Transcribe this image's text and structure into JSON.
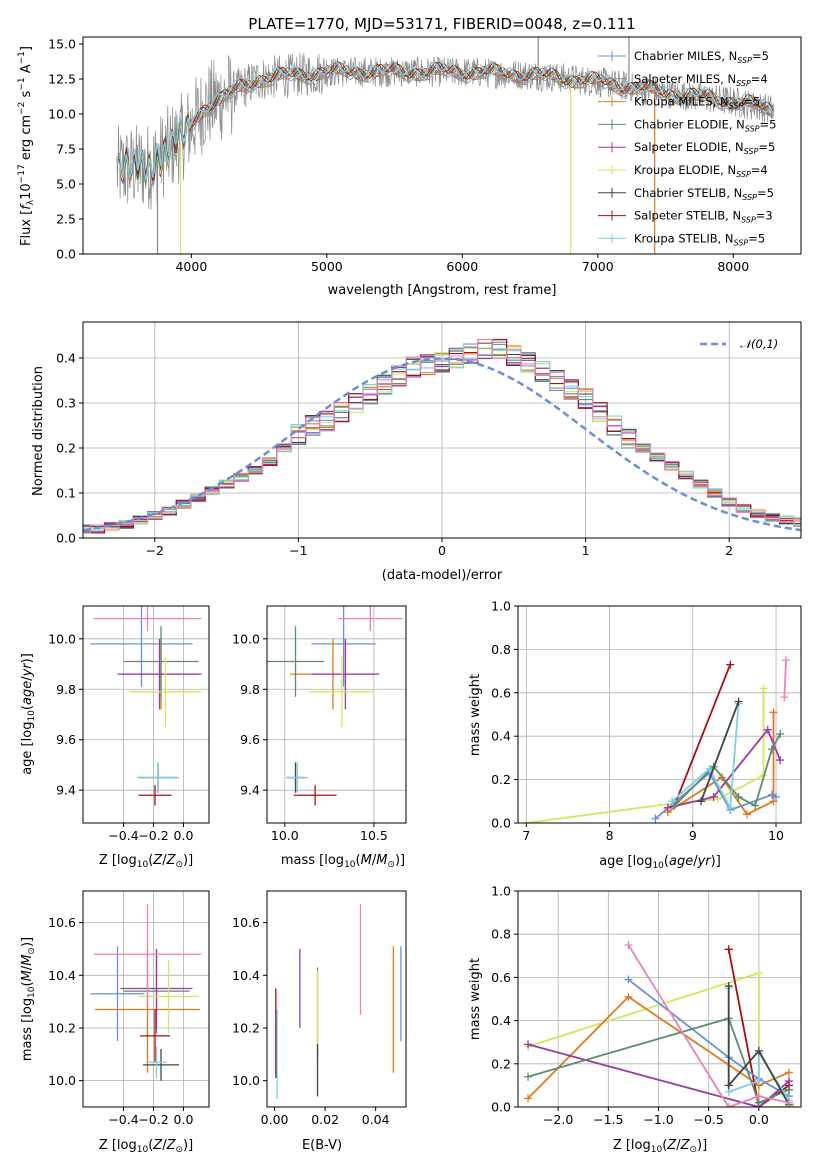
{
  "figure": {
    "title": "PLATE=1770, MJD=53171, FIBERID=0048, z=0.111",
    "colors": {
      "Chabrier MILES": "#6b8fd6",
      "Salpeter MILES": "#8a8a8a",
      "Kroupa MILES": "#e07a20",
      "Chabrier ELODIE": "#5f8b6e",
      "Salpeter ELODIE": "#9a3aa8",
      "Kroupa ELODIE": "#d2e85a",
      "Chabrier STELIB": "#444444",
      "Salpeter STELIB": "#a81010",
      "Kroupa STELIB": "#7fd0dc",
      "Pink": "#e884b8",
      "Gaussian": "#6b8fd6",
      "Grid": "#b0b0b0"
    }
  },
  "chart_data": [
    {
      "id": "spectrum",
      "type": "line",
      "xlabel": "wavelength [Angstrom, rest frame]",
      "ylabel": "Flux [f_λ 10^-17 erg cm^-2 s^-1 A^-1]",
      "xlim": [
        3200,
        8500
      ],
      "ylim": [
        0,
        15.5
      ],
      "xticks": [
        4000,
        5000,
        6000,
        7000,
        8000
      ],
      "yticks": [
        0.0,
        2.5,
        5.0,
        7.5,
        10.0,
        12.5,
        15.0
      ],
      "data_range": [
        3450,
        8300
      ],
      "continuum_anchors": [
        {
          "x": 3450,
          "y": 6.0
        },
        {
          "x": 3700,
          "y": 6.3
        },
        {
          "x": 3950,
          "y": 8.5
        },
        {
          "x": 4100,
          "y": 10.5
        },
        {
          "x": 4300,
          "y": 11.5
        },
        {
          "x": 4500,
          "y": 12.5
        },
        {
          "x": 5000,
          "y": 13.0
        },
        {
          "x": 5500,
          "y": 13.0
        },
        {
          "x": 6000,
          "y": 13.0
        },
        {
          "x": 6500,
          "y": 12.8
        },
        {
          "x": 7000,
          "y": 12.3
        },
        {
          "x": 7500,
          "y": 11.5
        },
        {
          "x": 8000,
          "y": 10.9
        },
        {
          "x": 8300,
          "y": 10.3
        }
      ],
      "legend": [
        {
          "model": "Chabrier MILES",
          "n": "5"
        },
        {
          "model": "Salpeter MILES",
          "n": "4"
        },
        {
          "model": "Kroupa MILES",
          "n": "5"
        },
        {
          "model": "Chabrier ELODIE",
          "n": "5"
        },
        {
          "model": "Salpeter ELODIE",
          "n": "5"
        },
        {
          "model": "Kroupa ELODIE",
          "n": "4"
        },
        {
          "model": "Chabrier STELIB",
          "n": "5"
        },
        {
          "model": "Salpeter STELIB",
          "n": "3"
        },
        {
          "model": "Kroupa STELIB",
          "n": "5"
        }
      ],
      "legend_position": "top-right",
      "grid": false
    },
    {
      "id": "residuals",
      "type": "line",
      "xlabel": "(data-model)/error",
      "ylabel": "Normed distribution",
      "xlim": [
        -2.5,
        2.5
      ],
      "ylim": [
        0,
        0.48
      ],
      "xticks": [
        -2,
        -1,
        0,
        1,
        2
      ],
      "yticks": [
        0.0,
        0.1,
        0.2,
        0.3,
        0.4
      ],
      "bin_width": 0.1,
      "bins_start": -2.55,
      "density": [
        0.02,
        0.02,
        0.025,
        0.03,
        0.04,
        0.05,
        0.06,
        0.075,
        0.09,
        0.105,
        0.12,
        0.135,
        0.15,
        0.17,
        0.2,
        0.23,
        0.25,
        0.26,
        0.28,
        0.3,
        0.32,
        0.34,
        0.36,
        0.38,
        0.385,
        0.39,
        0.4,
        0.41,
        0.42,
        0.42,
        0.405,
        0.39,
        0.37,
        0.35,
        0.33,
        0.31,
        0.28,
        0.25,
        0.22,
        0.2,
        0.18,
        0.16,
        0.14,
        0.12,
        0.1,
        0.08,
        0.065,
        0.055,
        0.045,
        0.04,
        0.035
      ],
      "legend": "𝒩(0,1)",
      "legend_position": "top-right",
      "grid": true
    },
    {
      "id": "z_age",
      "type": "scatter",
      "xlabel": "Z [log10(Z/Z⊙)]",
      "ylabel": "age [log10(age/yr)]",
      "xlim": [
        -0.67,
        0.17
      ],
      "ylim": [
        9.27,
        10.13
      ],
      "xticks": [
        -0.4,
        -0.2,
        0.0
      ],
      "yticks": [
        9.4,
        9.6,
        9.8,
        10.0
      ],
      "grid": true,
      "points": [
        {
          "c": "Chabrier MILES",
          "x": -0.28,
          "xe": 0.34,
          "y": 9.98,
          "ye": 0.17
        },
        {
          "c": "Kroupa MILES",
          "x": -0.15,
          "xe": 0.26,
          "y": 9.86,
          "ye": 0.14
        },
        {
          "c": "Chabrier ELODIE",
          "x": -0.15,
          "xe": 0.25,
          "y": 9.91,
          "ye": 0.14
        },
        {
          "c": "Salpeter ELODIE",
          "x": -0.16,
          "xe": 0.28,
          "y": 9.86,
          "ye": 0.14
        },
        {
          "c": "Kroupa ELODIE",
          "x": -0.12,
          "xe": 0.24,
          "y": 9.79,
          "ye": 0.14
        },
        {
          "c": "Chabrier STELIB",
          "x": -0.17,
          "xe": 0.13,
          "y": 9.45,
          "ye": 0.06
        },
        {
          "c": "Salpeter STELIB",
          "x": -0.19,
          "xe": 0.11,
          "y": 9.38,
          "ye": 0.04
        },
        {
          "c": "Kroupa STELIB",
          "x": -0.17,
          "xe": 0.14,
          "y": 9.45,
          "ye": 0.06
        },
        {
          "c": "Pink",
          "x": -0.24,
          "xe": 0.36,
          "y": 10.08,
          "ye": 0.05
        }
      ]
    },
    {
      "id": "mass_age",
      "type": "scatter",
      "xlabel": "mass [log10(M/M⊙)]",
      "ylabel": "",
      "xlim": [
        9.9,
        10.68
      ],
      "ylim": [
        9.27,
        10.13
      ],
      "xticks": [
        10.0,
        10.5
      ],
      "yticks": [
        9.4,
        9.6,
        9.8,
        10.0
      ],
      "grid": true,
      "points": [
        {
          "c": "Chabrier MILES",
          "x": 10.33,
          "xe": 0.18,
          "y": 9.98,
          "ye": 0.17
        },
        {
          "c": "Kroupa MILES",
          "x": 10.27,
          "xe": 0.24,
          "y": 9.86,
          "ye": 0.14
        },
        {
          "c": "Chabrier ELODIE",
          "x": 10.06,
          "xe": 0.16,
          "y": 9.91,
          "ye": 0.14
        },
        {
          "c": "Salpeter ELODIE",
          "x": 10.34,
          "xe": 0.19,
          "y": 9.86,
          "ye": 0.14
        },
        {
          "c": "Kroupa ELODIE",
          "x": 10.32,
          "xe": 0.18,
          "y": 9.79,
          "ye": 0.14
        },
        {
          "c": "Chabrier STELIB",
          "x": 10.06,
          "xe": 0.05,
          "y": 9.45,
          "ye": 0.06
        },
        {
          "c": "Salpeter STELIB",
          "x": 10.17,
          "xe": 0.12,
          "y": 9.38,
          "ye": 0.04
        },
        {
          "c": "Kroupa STELIB",
          "x": 10.07,
          "xe": 0.06,
          "y": 9.45,
          "ye": 0.06
        },
        {
          "c": "Pink",
          "x": 10.48,
          "xe": 0.18,
          "y": 10.08,
          "ye": 0.05
        }
      ]
    },
    {
      "id": "age_weight",
      "type": "line",
      "xlabel": "age [log10(age/yr)]",
      "ylabel": "mass weight",
      "xlim": [
        6.9,
        10.3
      ],
      "ylim": [
        0.0,
        1.0
      ],
      "xticks": [
        7,
        8,
        9,
        10
      ],
      "yticks": [
        0.0,
        0.2,
        0.4,
        0.6,
        0.8,
        1.0
      ],
      "grid": true,
      "series": [
        {
          "c": "Kroupa ELODIE",
          "x": [
            7.0,
            8.75,
            9.3,
            9.85,
            9.85
          ],
          "y": [
            0.0,
            0.09,
            0.11,
            0.22,
            0.62
          ]
        },
        {
          "c": "Kroupa MILES",
          "x": [
            8.7,
            9.35,
            9.65,
            9.97,
            9.97
          ],
          "y": [
            0.05,
            0.21,
            0.04,
            0.1,
            0.51
          ]
        },
        {
          "c": "Salpeter STELIB",
          "x": [
            8.8,
            9.45
          ],
          "y": [
            0.1,
            0.73
          ]
        },
        {
          "c": "Chabrier MILES",
          "x": [
            8.55,
            9.2,
            9.45,
            9.95,
            10.0
          ],
          "y": [
            0.02,
            0.23,
            0.06,
            0.13,
            0.12
          ]
        },
        {
          "c": "Salpeter ELODIE",
          "x": [
            8.7,
            9.25,
            9.9,
            10.05
          ],
          "y": [
            0.07,
            0.12,
            0.43,
            0.29
          ]
        },
        {
          "c": "Chabrier ELODIE",
          "x": [
            8.78,
            9.25,
            9.55,
            9.75,
            9.95,
            10.05
          ],
          "y": [
            0.08,
            0.26,
            0.12,
            0.08,
            0.34,
            0.41
          ]
        },
        {
          "c": "Kroupa STELIB",
          "x": [
            8.75,
            9.2,
            9.45,
            9.55
          ],
          "y": [
            0.1,
            0.25,
            0.07,
            0.55
          ]
        },
        {
          "c": "Chabrier STELIB",
          "x": [
            9.1,
            9.55
          ],
          "y": [
            0.1,
            0.56
          ]
        },
        {
          "c": "Pink",
          "x": [
            10.1,
            10.12
          ],
          "y": [
            0.58,
            0.75
          ]
        }
      ]
    },
    {
      "id": "z_mass",
      "type": "scatter",
      "xlabel": "Z [log10(Z/Z⊙)]",
      "ylabel": "mass [log10(M/M⊙)]",
      "xlim": [
        -0.67,
        0.17
      ],
      "ylim": [
        9.9,
        10.72
      ],
      "xticks": [
        -0.4,
        -0.2,
        0.0
      ],
      "yticks": [
        10.0,
        10.2,
        10.4,
        10.6
      ],
      "grid": true,
      "points": [
        {
          "c": "Chabrier MILES",
          "x": -0.44,
          "xe": 0.18,
          "y": 10.33,
          "ye": 0.18
        },
        {
          "c": "Kroupa MILES",
          "x": -0.24,
          "xe": 0.35,
          "y": 10.27,
          "ye": 0.24
        },
        {
          "c": "Chabrier ELODIE",
          "x": -0.18,
          "xe": 0.22,
          "y": 10.34,
          "ye": 0.16
        },
        {
          "c": "Salpeter ELODIE",
          "x": -0.18,
          "xe": 0.24,
          "y": 10.35,
          "ye": 0.15
        },
        {
          "c": "Kroupa ELODIE",
          "x": -0.1,
          "xe": 0.2,
          "y": 10.32,
          "ye": 0.14
        },
        {
          "c": "Chabrier STELIB",
          "x": -0.15,
          "xe": 0.12,
          "y": 10.06,
          "ye": 0.06
        },
        {
          "c": "Salpeter STELIB",
          "x": -0.19,
          "xe": 0.1,
          "y": 10.17,
          "ye": 0.1
        },
        {
          "c": "Kroupa STELIB",
          "x": -0.18,
          "xe": 0.07,
          "y": 10.07,
          "ye": 0.06
        },
        {
          "c": "Pink",
          "x": -0.24,
          "xe": 0.36,
          "y": 10.48,
          "ye": 0.19
        }
      ]
    },
    {
      "id": "ebv_mass",
      "type": "scatter",
      "xlabel": "E(B-V)",
      "ylabel": "",
      "xlim": [
        -0.003,
        0.052
      ],
      "ylim": [
        9.9,
        10.72
      ],
      "xticks": [
        0.0,
        0.02,
        0.04
      ],
      "yticks": [
        10.0,
        10.2,
        10.4,
        10.6
      ],
      "grid": false,
      "points": [
        {
          "c": "Chabrier MILES",
          "x": 0.05,
          "y": 10.33,
          "ye": 0.18
        },
        {
          "c": "Kroupa MILES",
          "x": 0.047,
          "y": 10.27,
          "ye": 0.24
        },
        {
          "c": "Chabrier ELODIE",
          "x": 0.017,
          "y": 10.26,
          "ye": 0.17
        },
        {
          "c": "Salpeter ELODIE",
          "x": 0.01,
          "y": 10.35,
          "ye": 0.15
        },
        {
          "c": "Kroupa ELODIE",
          "x": 0.017,
          "y": 10.25,
          "ye": 0.17
        },
        {
          "c": "Chabrier STELIB",
          "x": 0.017,
          "y": 10.04,
          "ye": 0.1
        },
        {
          "c": "Salpeter STELIB",
          "x": 0.0005,
          "y": 10.18,
          "ye": 0.17
        },
        {
          "c": "Kroupa STELIB",
          "x": 0.001,
          "y": 10.1,
          "ye": 0.17
        },
        {
          "c": "Pink",
          "x": 0.034,
          "y": 10.46,
          "ye": 0.21
        }
      ]
    },
    {
      "id": "z_weight",
      "type": "line",
      "xlabel": "Z [log10(Z/Z⊙)]",
      "ylabel": "mass weight",
      "xlim": [
        -2.4,
        0.42
      ],
      "ylim": [
        0.0,
        1.0
      ],
      "xticks": [
        -2.0,
        -1.5,
        -1.0,
        -0.5,
        0.0
      ],
      "yticks": [
        0.0,
        0.2,
        0.4,
        0.6,
        0.8,
        1.0
      ],
      "grid": true,
      "series": [
        {
          "c": "Kroupa ELODIE",
          "x": [
            -2.3,
            0.0,
            0.0,
            0.35
          ],
          "y": [
            0.28,
            0.62,
            0.0,
            0.0
          ]
        },
        {
          "c": "Kroupa MILES",
          "x": [
            -2.3,
            -1.3,
            0.0,
            0.3
          ],
          "y": [
            0.04,
            0.51,
            0.1,
            0.16
          ]
        },
        {
          "c": "Salpeter STELIB",
          "x": [
            -0.3,
            0.0,
            0.3
          ],
          "y": [
            0.73,
            0.0,
            0.1
          ]
        },
        {
          "c": "Chabrier MILES",
          "x": [
            -1.3,
            -0.3,
            0.0,
            0.3
          ],
          "y": [
            0.59,
            0.23,
            0.13,
            0.05
          ]
        },
        {
          "c": "Salpeter ELODIE",
          "x": [
            -2.3,
            0.0,
            0.3,
            0.3
          ],
          "y": [
            0.29,
            0.0,
            0.12,
            0.08
          ]
        },
        {
          "c": "Chabrier ELODIE",
          "x": [
            -2.3,
            -0.3,
            0.0,
            0.3
          ],
          "y": [
            0.14,
            0.41,
            0.02,
            0.08
          ]
        },
        {
          "c": "Kroupa STELIB",
          "x": [
            -0.3,
            -0.3,
            0.0,
            0.0,
            0.3
          ],
          "y": [
            0.55,
            0.07,
            0.12,
            0.25,
            0.03
          ]
        },
        {
          "c": "Chabrier STELIB",
          "x": [
            -0.3,
            -0.3,
            0.0,
            0.3
          ],
          "y": [
            0.56,
            0.1,
            0.26,
            0.01
          ]
        },
        {
          "c": "Pink",
          "x": [
            -1.3,
            -0.3,
            0.0,
            0.3
          ],
          "y": [
            0.75,
            0.0,
            0.05,
            0.02
          ]
        }
      ]
    }
  ]
}
